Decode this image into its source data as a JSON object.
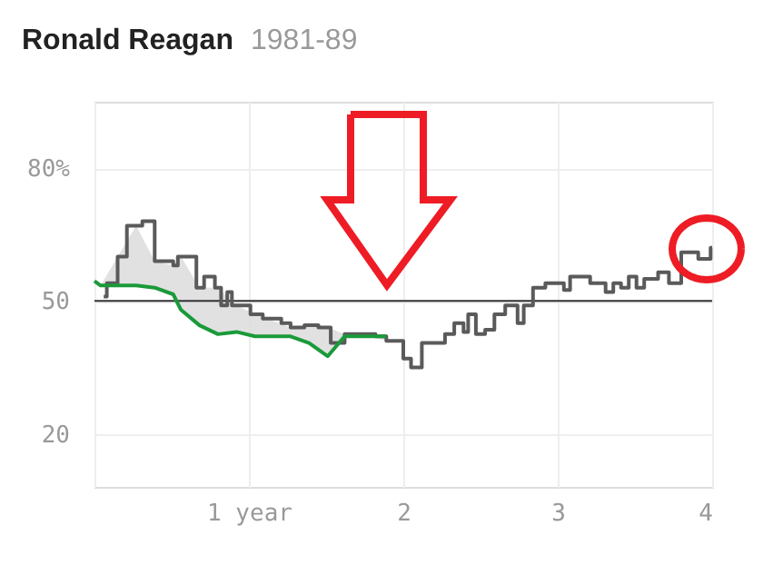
{
  "chart_data": {
    "type": "step",
    "title": "Ronald Reagan",
    "subtitle": "1981-89",
    "xlim": [
      0,
      4
    ],
    "xticks": [
      {
        "value": 0,
        "label": null
      },
      {
        "value": 1,
        "label": "1 year"
      },
      2,
      3,
      4
    ],
    "ylim": [
      8,
      95
    ],
    "yticks": [
      20,
      50,
      {
        "value": 80,
        "label": "80%"
      }
    ],
    "grid": true,
    "ref_lines": [
      {
        "axis": "y",
        "value": 50,
        "color": "#333333"
      }
    ],
    "series": [
      {
        "type": "step",
        "color": "#5a5a5a",
        "x": [
          0.06,
          0.08,
          0.15,
          0.21,
          0.31,
          0.39,
          0.51,
          0.54,
          0.66,
          0.71,
          0.78,
          0.82,
          0.86,
          0.89,
          1.01,
          1.09,
          1.21,
          1.27,
          1.36,
          1.45,
          1.53,
          1.62,
          1.82,
          1.89,
          2.0,
          2.05,
          2.12,
          2.27,
          2.33,
          2.39,
          2.42,
          2.47,
          2.53,
          2.59,
          2.66,
          2.74,
          2.78,
          2.84,
          2.92,
          3.04,
          3.08,
          3.21,
          3.31,
          3.36,
          3.41,
          3.46,
          3.51,
          3.56,
          3.65,
          3.72,
          3.8,
          3.91,
          3.99,
          4.0
        ],
        "values": [
          51,
          54,
          60,
          67,
          68,
          59,
          58,
          60,
          53,
          55.5,
          53,
          49,
          52,
          49,
          47,
          46,
          45,
          44,
          44.5,
          44,
          40.5,
          42.5,
          42,
          41,
          37,
          35,
          40.5,
          42.5,
          45,
          43,
          47,
          42.5,
          43.5,
          47,
          49,
          45,
          49,
          53,
          54,
          52.5,
          55.5,
          54,
          52,
          54,
          53,
          55.5,
          53,
          55,
          56.5,
          54,
          61,
          59.5,
          62,
          62
        ]
      },
      {
        "type": "line",
        "color": "#1a9a3a",
        "x": [
          0,
          0.04,
          0.27,
          0.39,
          0.51,
          0.56,
          0.68,
          0.8,
          0.92,
          1.04,
          1.27,
          1.39,
          1.51,
          1.62,
          1.74,
          1.89
        ],
        "values": [
          54.5,
          53.5,
          53.5,
          53,
          51.5,
          48,
          44.5,
          42.5,
          43,
          42,
          42,
          40.5,
          37.5,
          42,
          42,
          42
        ],
        "lower": [
          54.5,
          53.5,
          53.5,
          53,
          51.5,
          48,
          44.5,
          42.5,
          43,
          42,
          42,
          40.5,
          37.5,
          42,
          42,
          42
        ],
        "upper": [
          54.5,
          53.5,
          67,
          59,
          58,
          60,
          53,
          53,
          49,
          47,
          44,
          44.5,
          44,
          42.5,
          42.5,
          41
        ]
      }
    ]
  }
}
